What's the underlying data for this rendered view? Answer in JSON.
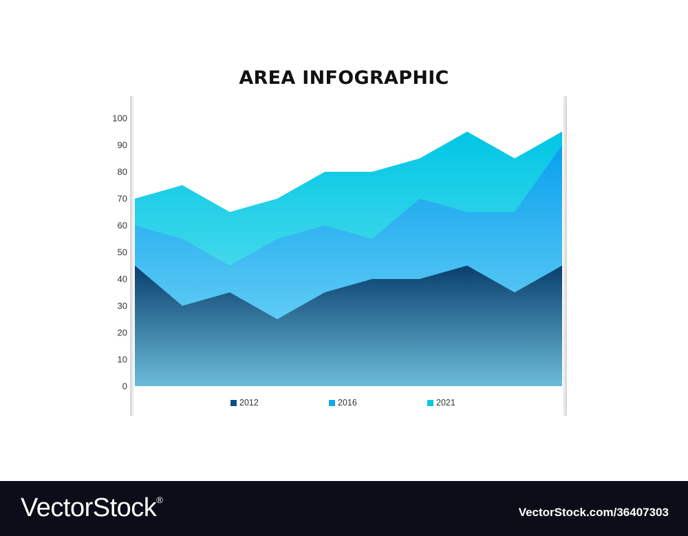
{
  "chart_data": {
    "type": "area",
    "title": "AREA INFOGRAPHIC",
    "xlabel": "",
    "ylabel": "",
    "ylim": [
      0,
      100
    ],
    "yticks": [
      0,
      10,
      20,
      30,
      40,
      50,
      60,
      70,
      80,
      90,
      100
    ],
    "grid": false,
    "legend_position": "bottom",
    "stacked": false,
    "x": [
      0,
      1,
      2,
      3,
      4,
      5,
      6,
      7,
      8,
      9
    ],
    "series": [
      {
        "name": "2021",
        "color": "#0ac8e2",
        "values": [
          70,
          75,
          65,
          70,
          80,
          80,
          85,
          95,
          85,
          95
        ]
      },
      {
        "name": "2016",
        "color": "#13a7ea",
        "values": [
          60,
          55,
          45,
          55,
          60,
          55,
          70,
          65,
          65,
          90
        ]
      },
      {
        "name": "2012",
        "color": "#0d4f7f",
        "values": [
          45,
          30,
          35,
          25,
          35,
          40,
          40,
          45,
          35,
          45
        ]
      }
    ]
  },
  "legend": [
    {
      "label": "2012",
      "color": "#0d4f7f"
    },
    {
      "label": "2016",
      "color": "#13a7ea"
    },
    {
      "label": "2021",
      "color": "#0ac8e2"
    }
  ],
  "footer": {
    "logo": "VectorStock",
    "reg": "®",
    "image_id": "VectorStock.com/36407303"
  }
}
